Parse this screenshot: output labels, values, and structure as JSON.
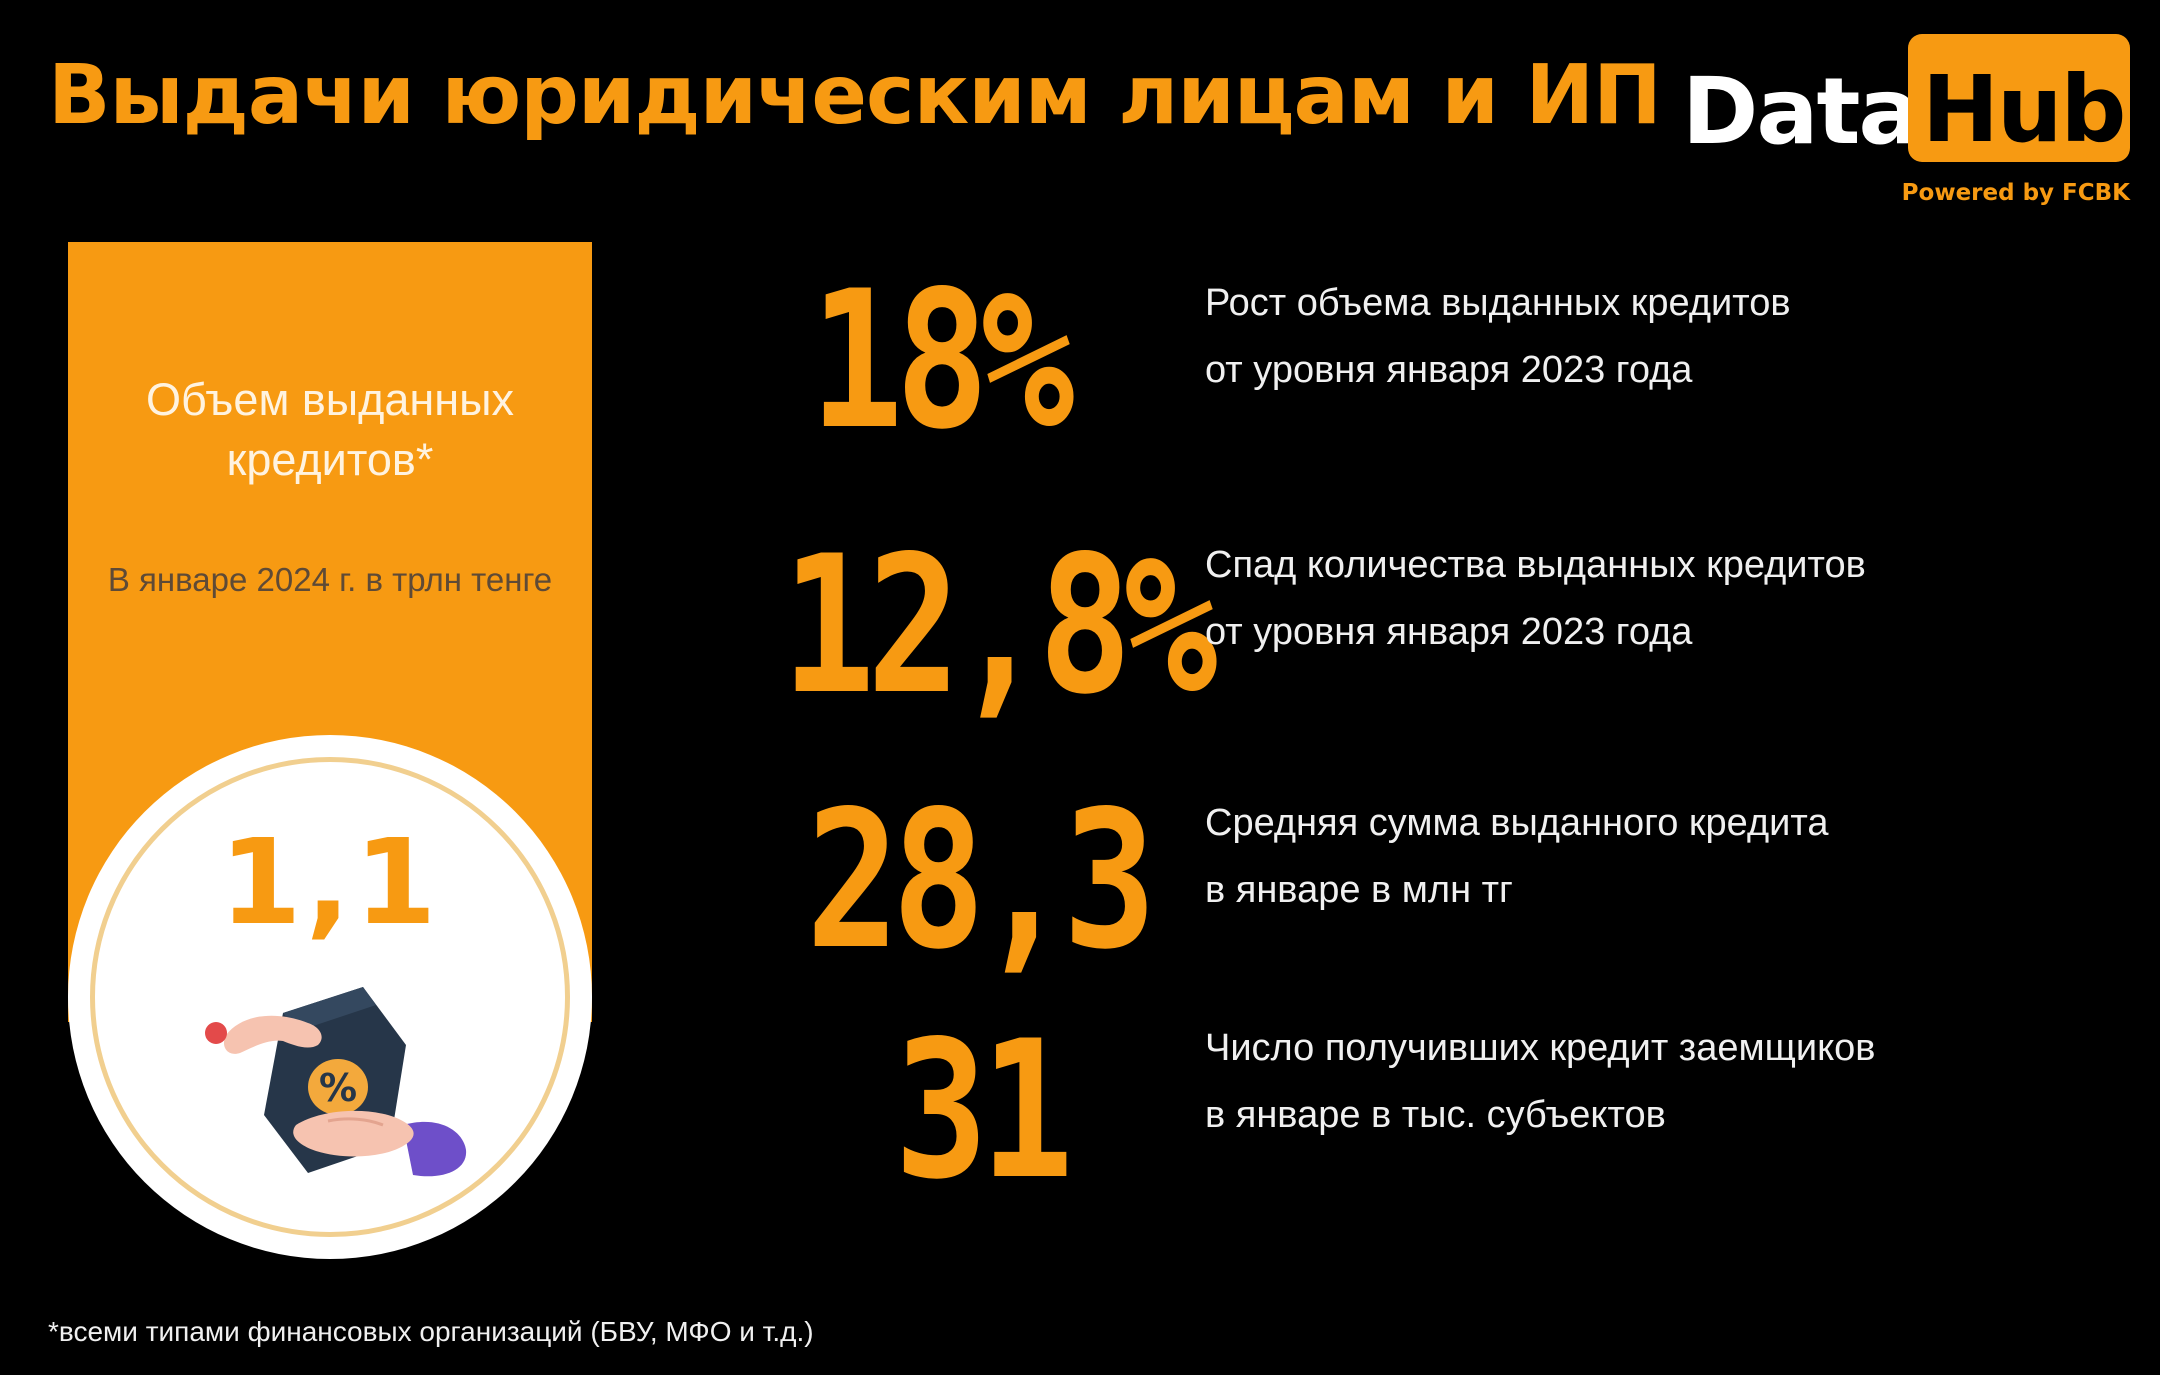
{
  "title": "Выдачи юридическим лицам и ИП",
  "logo": {
    "word1": "Data",
    "word2": "Hub",
    "tagline": "Powered by FCBK"
  },
  "panel": {
    "title": "Объем выданных кредитов*",
    "subtitle": "В январе 2024 г. в трлн тенге",
    "value": "1,1",
    "illustration": "hands-percent-icon"
  },
  "stats": [
    {
      "value": "18%",
      "line1": "Рост объема выданных кредитов",
      "line2": "от уровня января 2023 года"
    },
    {
      "value": "12,8%",
      "line1": "Спад количества выданных кредитов",
      "line2": "от уровня января 2023 года"
    },
    {
      "value": "28,3",
      "line1": "Средняя сумма выданного кредита",
      "line2": "в январе в млн тг"
    },
    {
      "value": "31",
      "line1": "Число получивших кредит заемщиков",
      "line2": "в январе в тыс. субъектов"
    }
  ],
  "footnote": "*всеми типами финансовых организаций (БВУ, МФО и т.д.)",
  "colors": {
    "accent": "#f79a12",
    "background": "#000000"
  }
}
